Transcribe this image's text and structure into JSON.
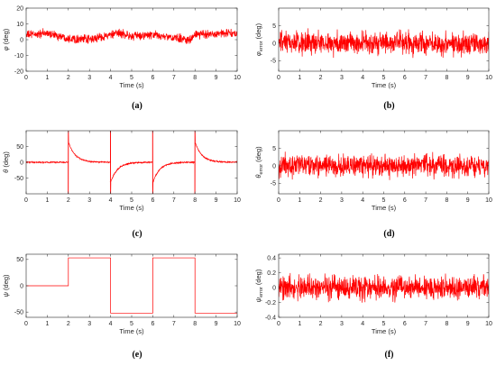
{
  "chart_data": [
    {
      "id": "a",
      "type": "line",
      "panel_label": "(a)",
      "xlabel": "Time (s)",
      "ylabel_main": "φ",
      "ylabel_sub": "",
      "ylabel_unit": " (deg)",
      "xlim": [
        0,
        10
      ],
      "ylim": [
        -20,
        20
      ],
      "xticks": [
        0,
        1,
        2,
        3,
        4,
        5,
        6,
        7,
        8,
        9,
        10
      ],
      "yticks": [
        -20,
        -10,
        0,
        10,
        20
      ],
      "color": "#ff0000",
      "grid": false,
      "signal": {
        "kind": "noisy",
        "baseline": [
          [
            0,
            3
          ],
          [
            1,
            4
          ],
          [
            2,
            1
          ],
          [
            3,
            0
          ],
          [
            4,
            3
          ],
          [
            4.5,
            4
          ],
          [
            5,
            2
          ],
          [
            6,
            3
          ],
          [
            7,
            1
          ],
          [
            7.8,
            0
          ],
          [
            8,
            3
          ],
          [
            9,
            4
          ],
          [
            10,
            4
          ]
        ],
        "noise_amplitude": 3.5,
        "samples": 1000
      }
    },
    {
      "id": "b",
      "type": "line",
      "panel_label": "(b)",
      "xlabel": "Time (s)",
      "ylabel_main": "φ",
      "ylabel_sub": "error",
      "ylabel_unit": " (deg)",
      "xlim": [
        0,
        10
      ],
      "ylim": [
        -8,
        10
      ],
      "xticks": [
        0,
        1,
        2,
        3,
        4,
        5,
        6,
        7,
        8,
        9,
        10
      ],
      "yticks": [
        -5,
        0,
        5
      ],
      "color": "#ff0000",
      "grid": false,
      "signal": {
        "kind": "noisy",
        "baseline": [
          [
            0,
            0
          ],
          [
            10,
            0
          ]
        ],
        "noise_amplitude": 4.2,
        "samples": 1000
      }
    },
    {
      "id": "c",
      "type": "line",
      "panel_label": "(c)",
      "xlabel": "Time (s)",
      "ylabel_main": "θ",
      "ylabel_sub": "",
      "ylabel_unit": " (deg)",
      "xlim": [
        0,
        10
      ],
      "ylim": [
        -100,
        100
      ],
      "xticks": [
        0,
        1,
        2,
        3,
        4,
        5,
        6,
        7,
        8,
        9,
        10
      ],
      "yticks": [
        -50,
        0,
        50
      ],
      "color": "#ff0000",
      "grid": false,
      "signal": {
        "kind": "transients",
        "events": [
          {
            "t": 2,
            "direction": 1
          },
          {
            "t": 4,
            "direction": -1
          },
          {
            "t": 6,
            "direction": -1
          },
          {
            "t": 8,
            "direction": 1
          }
        ],
        "spike_value": 100,
        "peak_value": 65,
        "decay_s": 0.32,
        "noise_amplitude": 2.5,
        "samples": 1000
      }
    },
    {
      "id": "d",
      "type": "line",
      "panel_label": "(d)",
      "xlabel": "Time (s)",
      "ylabel_main": "θ",
      "ylabel_sub": "error",
      "ylabel_unit": " (deg)",
      "xlim": [
        0,
        10
      ],
      "ylim": [
        -8,
        10
      ],
      "xticks": [
        0,
        1,
        2,
        3,
        4,
        5,
        6,
        7,
        8,
        9,
        10
      ],
      "yticks": [
        -5,
        0,
        5
      ],
      "color": "#ff0000",
      "grid": false,
      "signal": {
        "kind": "noisy",
        "baseline": [
          [
            0,
            0
          ],
          [
            10,
            0
          ]
        ],
        "noise_amplitude": 4.0,
        "samples": 1000
      }
    },
    {
      "id": "e",
      "type": "line",
      "panel_label": "(e)",
      "xlabel": "Time (s)",
      "ylabel_main": "ψ",
      "ylabel_sub": "",
      "ylabel_unit": " (deg)",
      "xlim": [
        0,
        10
      ],
      "ylim": [
        -60,
        60
      ],
      "xticks": [
        0,
        1,
        2,
        3,
        4,
        5,
        6,
        7,
        8,
        9,
        10
      ],
      "yticks": [
        -50,
        0,
        50
      ],
      "color": "#ff0000",
      "grid": false,
      "signal": {
        "kind": "step",
        "points": [
          [
            0,
            0
          ],
          [
            2,
            0
          ],
          [
            2,
            53
          ],
          [
            4,
            53
          ],
          [
            4,
            -52
          ],
          [
            6,
            -52
          ],
          [
            6,
            53
          ],
          [
            8,
            53
          ],
          [
            8,
            -52
          ],
          [
            10,
            -52
          ]
        ]
      }
    },
    {
      "id": "f",
      "type": "line",
      "panel_label": "(f)",
      "xlabel": "Time (s)",
      "ylabel_main": "ψ",
      "ylabel_sub": "error",
      "ylabel_unit": " (deg)",
      "xlim": [
        0,
        10
      ],
      "ylim": [
        -0.4,
        0.45
      ],
      "xticks": [
        0,
        1,
        2,
        3,
        4,
        5,
        6,
        7,
        8,
        9,
        10
      ],
      "yticks": [
        -0.4,
        -0.2,
        0,
        0.2,
        0.4
      ],
      "color": "#ff0000",
      "grid": false,
      "signal": {
        "kind": "noisy",
        "baseline": [
          [
            0,
            0
          ],
          [
            10,
            0
          ]
        ],
        "noise_amplitude": 0.2,
        "samples": 1000
      }
    }
  ]
}
